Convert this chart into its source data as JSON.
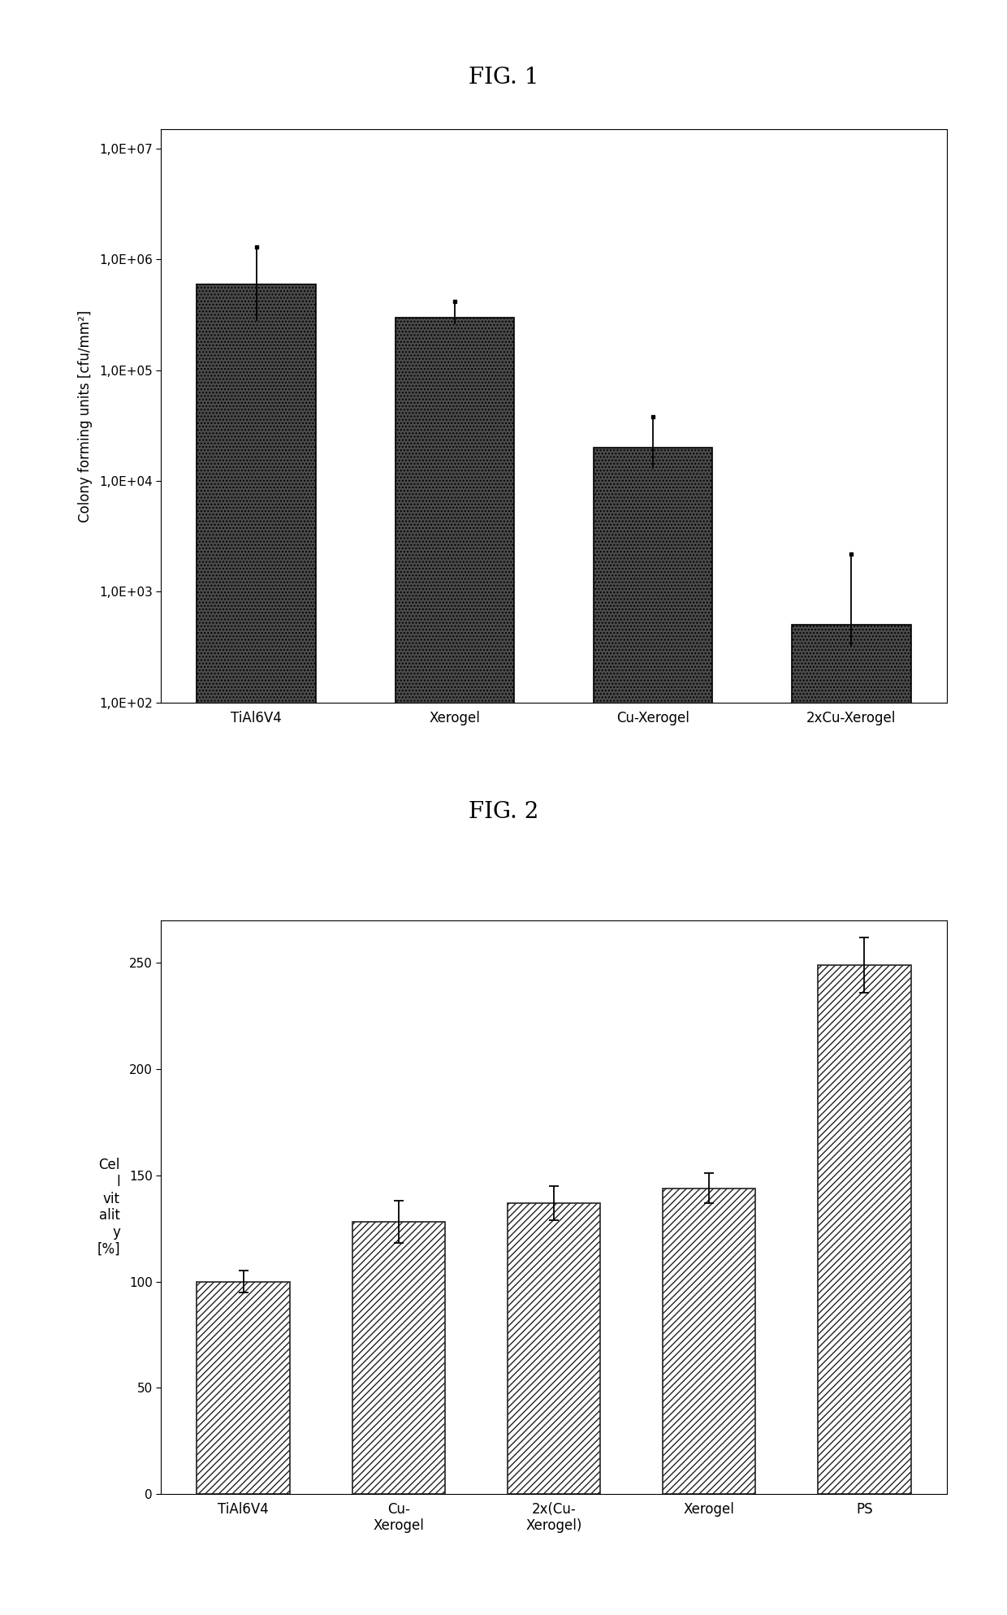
{
  "fig1": {
    "title": "FIG. 1",
    "categories": [
      "TiAl6V4",
      "Xerogel",
      "Cu-Xerogel",
      "2xCu-Xerogel"
    ],
    "values": [
      600000,
      300000,
      20000,
      500
    ],
    "errors_upper": [
      1300000,
      420000,
      38000,
      2200
    ],
    "errors_lower": [
      280000,
      260000,
      13000,
      320
    ],
    "ylabel": "Colony forming units [cfu/mm²]",
    "ytick_labels": [
      "1,0E+02",
      "1,0E+03",
      "1,0E+04",
      "1,0E+05",
      "1,0E+06",
      "1,0E+07"
    ],
    "yticks": [
      100,
      1000,
      10000,
      100000,
      1000000,
      10000000
    ],
    "bar_color": "#4a4a4a",
    "bar_width": 0.6
  },
  "fig2": {
    "title": "FIG. 2",
    "categories": [
      "TiAl6V4",
      "Cu-\nXerogel",
      "2x(Cu-\nXerogel)",
      "Xerogel",
      "PS"
    ],
    "values": [
      100,
      128,
      137,
      144,
      249
    ],
    "errors": [
      5,
      10,
      8,
      7,
      13
    ],
    "ylabel": "Cel\nl\nvit\nalit\ny\n[%]",
    "ylim": [
      0,
      270
    ],
    "yticks": [
      0,
      50,
      100,
      150,
      200,
      250
    ],
    "bar_color": "white",
    "bar_hatch": "////",
    "bar_edgecolor": "#222222",
    "bar_width": 0.6
  },
  "background_color": "#ffffff",
  "fig_title_fontsize": 20,
  "axis_label_fontsize": 12,
  "tick_label_fontsize": 11,
  "xticklabel_fontsize": 12
}
